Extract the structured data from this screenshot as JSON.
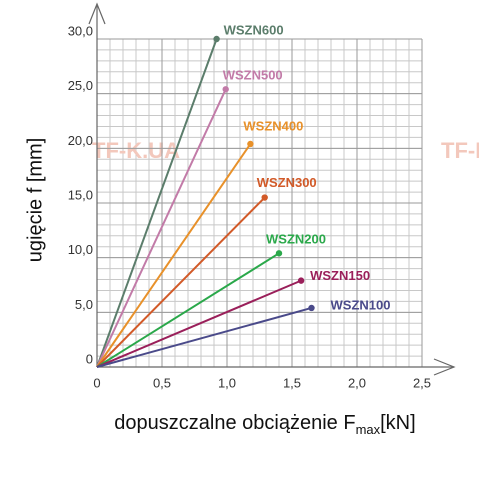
{
  "chart_data": {
    "type": "line",
    "xlabel": {
      "text": "dopuszczalne obciążenie F",
      "subscript": "max",
      "suffix": "[kN]"
    },
    "ylabel": "ugięcie f [mm]",
    "watermark": "TF-K.UA",
    "xlim": [
      0,
      2.5
    ],
    "xticks": [
      0,
      {
        "value": 0.5,
        "label": "0,5"
      },
      {
        "value": 1,
        "label": "1,0"
      },
      {
        "value": 1.5,
        "label": "1,5"
      },
      {
        "value": 2,
        "label": "2,0"
      },
      {
        "value": 2.5,
        "label": "2,5"
      }
    ],
    "ylim": [
      0,
      30
    ],
    "yticks": [
      0,
      {
        "value": 5,
        "label": "5,0"
      },
      {
        "value": 10,
        "label": "10,0"
      },
      {
        "value": 15,
        "label": "15,0"
      },
      {
        "value": 20,
        "label": "20,0"
      },
      {
        "value": 25,
        "label": "25,0"
      },
      {
        "value": 30,
        "label": "30,0"
      }
    ],
    "grid": true,
    "series": [
      {
        "name": "WSZN600",
        "color": "#5b7d6b",
        "x": [
          0,
          0.92
        ],
        "values": [
          0,
          30
        ]
      },
      {
        "name": "WSZN500",
        "color": "#c27ba8",
        "x": [
          0,
          0.99
        ],
        "values": [
          0,
          25.4
        ]
      },
      {
        "name": "WSZN400",
        "color": "#e8912a",
        "x": [
          0,
          1.18
        ],
        "values": [
          0,
          20.4
        ]
      },
      {
        "name": "WSZN300",
        "color": "#d25a28",
        "x": [
          0,
          1.29
        ],
        "values": [
          0,
          15.5
        ]
      },
      {
        "name": "WSZN200",
        "color": "#2aa84a",
        "x": [
          0,
          1.4
        ],
        "values": [
          0,
          10.4
        ]
      },
      {
        "name": "WSZN150",
        "color": "#9a1f5a",
        "x": [
          0,
          1.57
        ],
        "values": [
          0,
          7.9
        ]
      },
      {
        "name": "WSZN100",
        "color": "#4a4a8a",
        "x": [
          0,
          1.65
        ],
        "values": [
          0,
          5.4
        ]
      }
    ]
  }
}
